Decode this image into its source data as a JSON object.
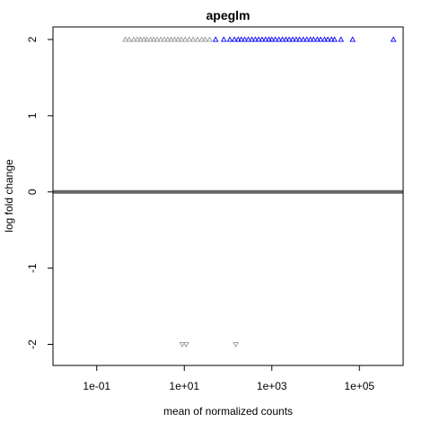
{
  "chart_data": {
    "type": "scatter",
    "title": "apeglm",
    "xlabel": "mean of normalized counts",
    "ylabel": "log fold change",
    "x_scale": "log10",
    "xlim": [
      0.01,
      1000000
    ],
    "ylim": [
      -2.1,
      2.0
    ],
    "x_ticks": [
      {
        "value": 0.1,
        "label": "1e-01"
      },
      {
        "value": 10,
        "label": "1e+01"
      },
      {
        "value": 1000,
        "label": "1e+03"
      },
      {
        "value": 100000,
        "label": "1e+05"
      }
    ],
    "y_ticks": [
      {
        "value": -2,
        "label": "-2"
      },
      {
        "value": -1,
        "label": "-1"
      },
      {
        "value": 0,
        "label": "0"
      },
      {
        "value": 1,
        "label": "1"
      },
      {
        "value": 2,
        "label": "2"
      }
    ],
    "reference_line": {
      "y": 0,
      "color": "#666666"
    },
    "colors": {
      "nonsignificant": "#999999",
      "significant": "#0000ff",
      "zero_line": "#666666"
    },
    "series": [
      {
        "marker": "triangle-up",
        "color": "#999999",
        "points": [
          {
            "x": 0.45,
            "y": 2
          },
          {
            "x": 0.55,
            "y": 2
          },
          {
            "x": 0.7,
            "y": 2
          },
          {
            "x": 0.85,
            "y": 2
          },
          {
            "x": 1.0,
            "y": 2
          },
          {
            "x": 1.2,
            "y": 2
          },
          {
            "x": 1.4,
            "y": 2
          },
          {
            "x": 1.7,
            "y": 2
          },
          {
            "x": 2.0,
            "y": 2
          },
          {
            "x": 2.4,
            "y": 2
          },
          {
            "x": 2.9,
            "y": 2
          },
          {
            "x": 3.5,
            "y": 2
          },
          {
            "x": 4.2,
            "y": 2
          },
          {
            "x": 5.0,
            "y": 2
          },
          {
            "x": 6.0,
            "y": 2
          },
          {
            "x": 7.2,
            "y": 2
          },
          {
            "x": 8.6,
            "y": 2
          },
          {
            "x": 10.5,
            "y": 2
          },
          {
            "x": 13,
            "y": 2
          },
          {
            "x": 16,
            "y": 2
          },
          {
            "x": 20,
            "y": 2
          },
          {
            "x": 25,
            "y": 2
          },
          {
            "x": 30,
            "y": 2
          },
          {
            "x": 38,
            "y": 2
          }
        ]
      },
      {
        "marker": "triangle-up",
        "color": "#0000ff",
        "points": [
          {
            "x": 52,
            "y": 2
          },
          {
            "x": 80,
            "y": 2
          },
          {
            "x": 110,
            "y": 2
          },
          {
            "x": 140,
            "y": 2
          },
          {
            "x": 170,
            "y": 2
          },
          {
            "x": 200,
            "y": 2
          },
          {
            "x": 240,
            "y": 2
          },
          {
            "x": 290,
            "y": 2
          },
          {
            "x": 350,
            "y": 2
          },
          {
            "x": 420,
            "y": 2
          },
          {
            "x": 500,
            "y": 2
          },
          {
            "x": 600,
            "y": 2
          },
          {
            "x": 720,
            "y": 2
          },
          {
            "x": 860,
            "y": 2
          },
          {
            "x": 1000,
            "y": 2
          },
          {
            "x": 1200,
            "y": 2
          },
          {
            "x": 1450,
            "y": 2
          },
          {
            "x": 1750,
            "y": 2
          },
          {
            "x": 2100,
            "y": 2
          },
          {
            "x": 2500,
            "y": 2
          },
          {
            "x": 3000,
            "y": 2
          },
          {
            "x": 3600,
            "y": 2
          },
          {
            "x": 4300,
            "y": 2
          },
          {
            "x": 5200,
            "y": 2
          },
          {
            "x": 6300,
            "y": 2
          },
          {
            "x": 7600,
            "y": 2
          },
          {
            "x": 9000,
            "y": 2
          },
          {
            "x": 11000,
            "y": 2
          },
          {
            "x": 13000,
            "y": 2
          },
          {
            "x": 16000,
            "y": 2
          },
          {
            "x": 19000,
            "y": 2
          },
          {
            "x": 23000,
            "y": 2
          },
          {
            "x": 27000,
            "y": 2
          },
          {
            "x": 38000,
            "y": 2
          },
          {
            "x": 70000,
            "y": 2
          },
          {
            "x": 600000,
            "y": 2
          }
        ]
      },
      {
        "marker": "triangle-down",
        "color": "#999999",
        "points": [
          {
            "x": 9,
            "y": -2
          },
          {
            "x": 11,
            "y": -2
          },
          {
            "x": 150,
            "y": -2
          }
        ]
      }
    ]
  }
}
